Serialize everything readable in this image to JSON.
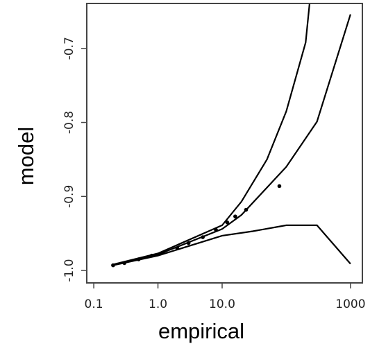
{
  "chart_data": {
    "type": "line",
    "xlabel": "empirical",
    "ylabel": "model",
    "xscale": "log",
    "xlim": [
      0.0778,
      1531
    ],
    "ylim": [
      -1.0168,
      -0.6393
    ],
    "xticks": [
      0.1,
      {
        "value": 1,
        "label": "1.0"
      },
      {
        "value": 10,
        "label": "10.0"
      },
      1000
    ],
    "yticks": [
      {
        "value": -1,
        "label": "-1.0"
      },
      -0.9,
      -0.8,
      -0.7
    ],
    "series": [
      {
        "color": "#000000",
        "style": "line",
        "x": [
          0.2,
          1,
          10,
          20,
          100,
          300,
          1000
        ],
        "values": [
          -0.9925,
          -0.9785,
          -0.944,
          -0.925,
          -0.86,
          -0.799,
          -0.654
        ]
      },
      {
        "color": "#000000",
        "style": "line",
        "x": [
          0.2,
          1,
          10,
          20,
          50,
          100,
          200,
          230
        ],
        "values": [
          -0.992,
          -0.977,
          -0.939,
          -0.907,
          -0.85,
          -0.785,
          -0.692,
          -0.64
        ]
      },
      {
        "color": "#000000",
        "style": "line",
        "x": [
          0.2,
          1,
          10,
          30,
          100,
          300,
          1000
        ],
        "values": [
          -0.993,
          -0.98,
          -0.953,
          -0.947,
          -0.939,
          -0.939,
          -0.991
        ]
      },
      {
        "color": "#000000",
        "style": "points",
        "x": [
          0.2,
          0.3,
          0.5,
          0.8,
          1.2,
          2,
          3,
          5,
          8,
          12,
          16,
          23.6,
          78
        ],
        "values": [
          -0.993,
          -0.99,
          -0.985,
          -0.98,
          -0.976,
          -0.97,
          -0.963,
          -0.955,
          -0.945,
          -0.935,
          -0.927,
          -0.918,
          -0.886
        ]
      }
    ]
  }
}
